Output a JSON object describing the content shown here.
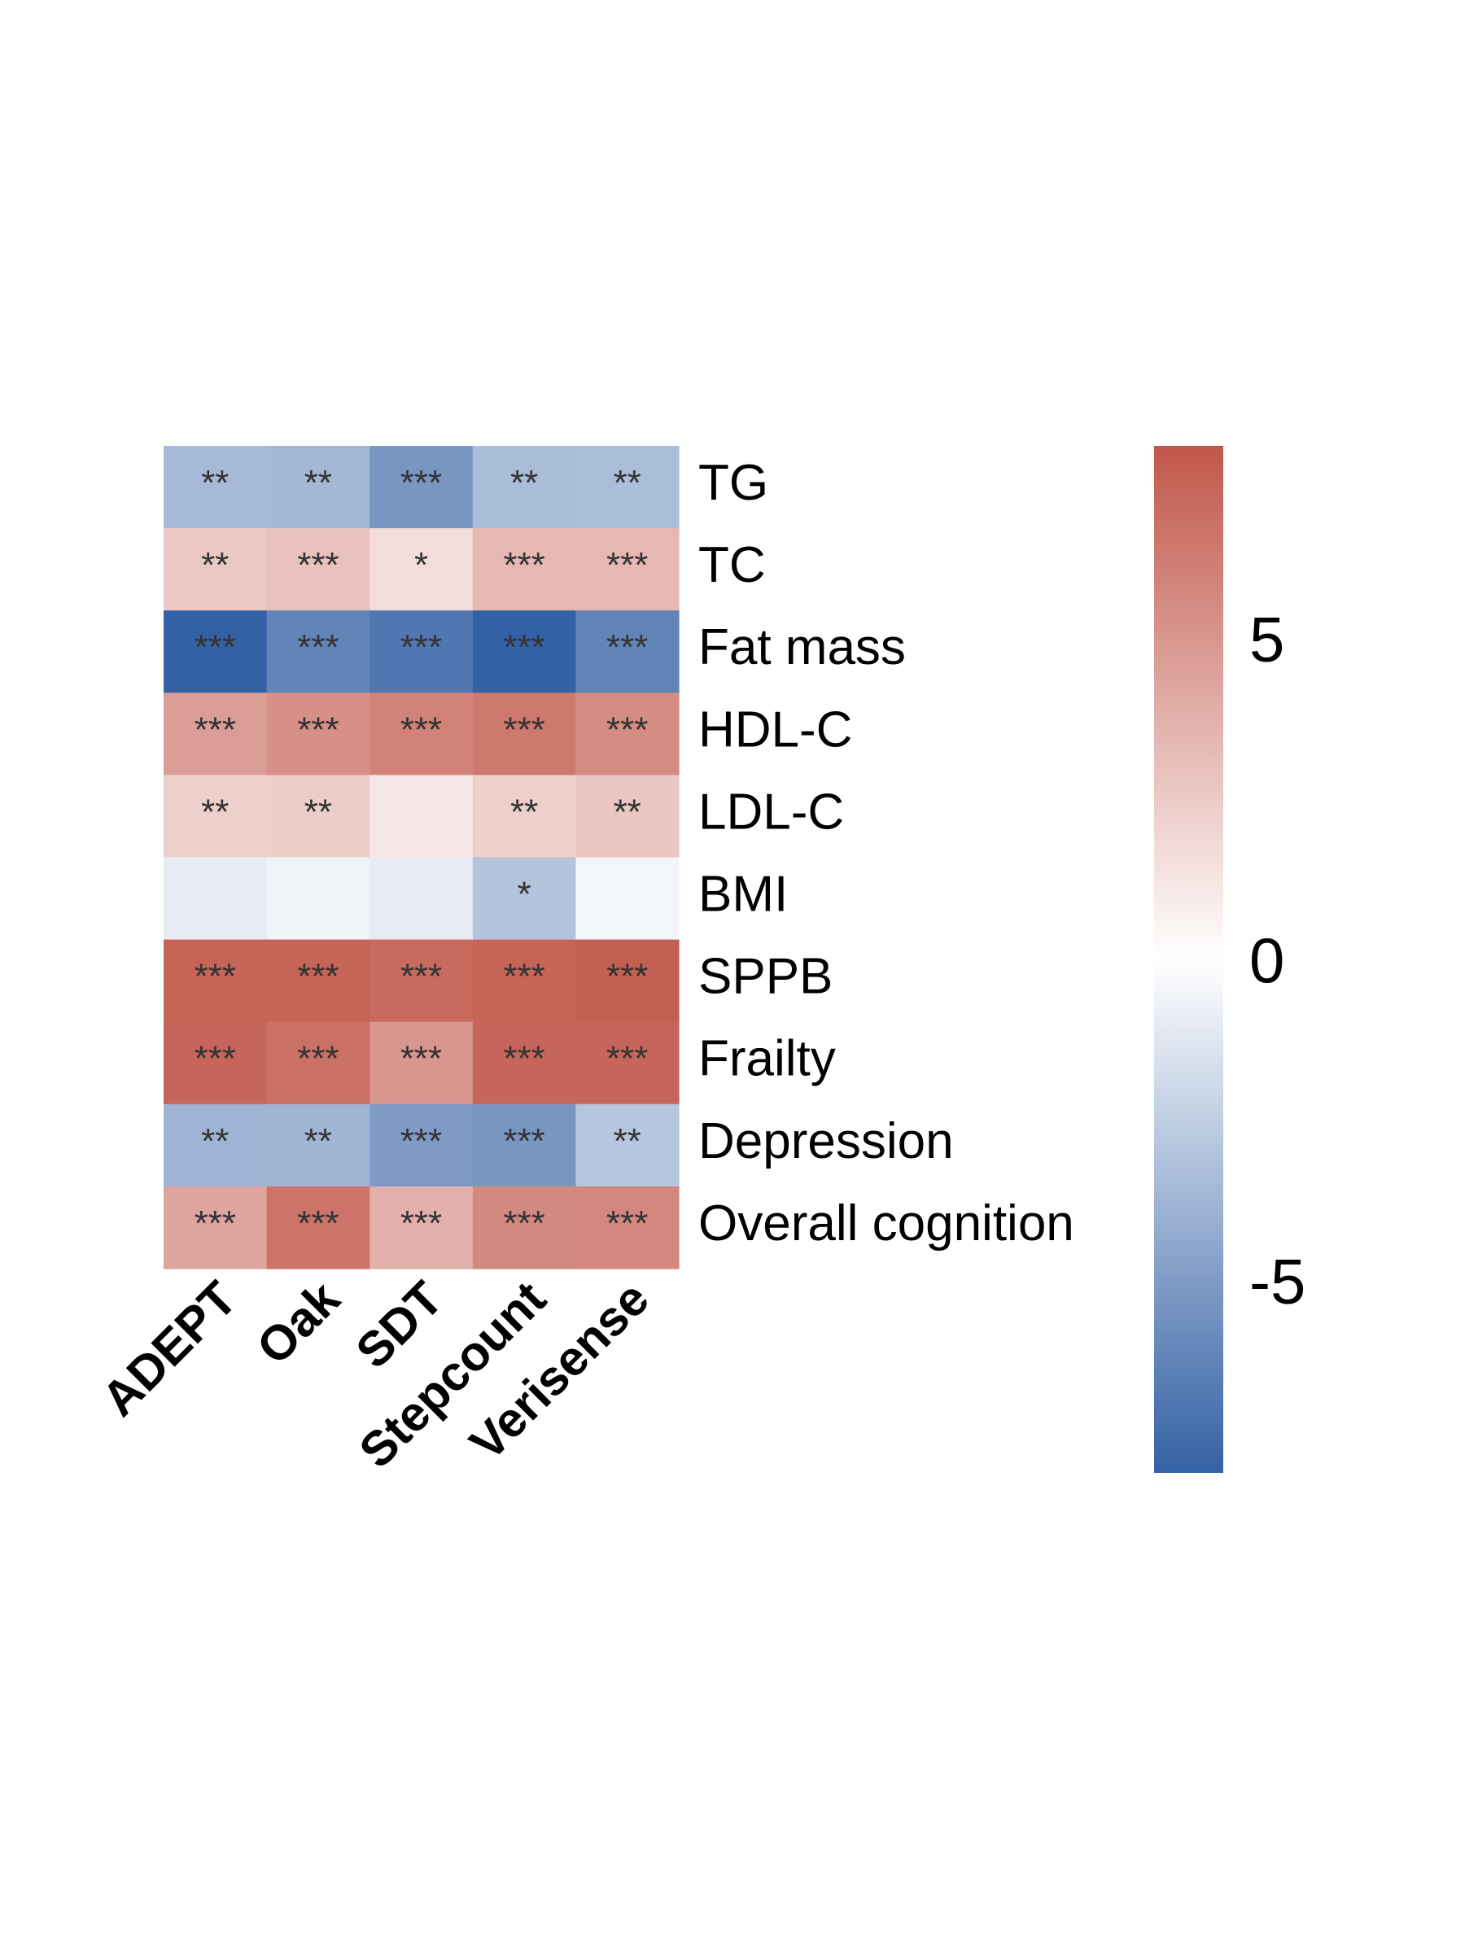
{
  "chart_data": {
    "type": "heatmap",
    "columns": [
      "ADEPT",
      "Oak",
      "SDT",
      "Stepcount",
      "Verisense"
    ],
    "rows": [
      "TG",
      "TC",
      "Fat mass",
      "HDL-C",
      "LDL-C",
      "BMI",
      "SPPB",
      "Frailty",
      "Depression",
      "Overall cognition"
    ],
    "values": [
      [
        -3.5,
        -3.6,
        -5.3,
        -3.4,
        -3.3
      ],
      [
        2.6,
        2.9,
        1.6,
        3.4,
        3.4
      ],
      [
        -8.0,
        -6.2,
        -6.9,
        -8.4,
        -6.2
      ],
      [
        4.6,
        5.3,
        5.9,
        6.4,
        5.5
      ],
      [
        2.3,
        2.4,
        1.1,
        2.3,
        2.7
      ],
      [
        -1.0,
        -0.6,
        -1.0,
        -3.0,
        -0.5
      ],
      [
        7.4,
        7.4,
        7.1,
        7.4,
        7.6
      ],
      [
        7.3,
        6.8,
        5.0,
        7.3,
        7.3
      ],
      [
        -3.8,
        -3.7,
        -5.1,
        -5.3,
        -2.9
      ],
      [
        4.3,
        6.6,
        3.7,
        5.6,
        5.7
      ]
    ],
    "annotations": [
      [
        "**",
        "**",
        "***",
        "**",
        "**"
      ],
      [
        "**",
        "***",
        "*",
        "***",
        "***"
      ],
      [
        "***",
        "***",
        "***",
        "***",
        "***"
      ],
      [
        "***",
        "***",
        "***",
        "***",
        "***"
      ],
      [
        "**",
        "**",
        "",
        "**",
        "**"
      ],
      [
        "",
        "",
        "",
        "*",
        ""
      ],
      [
        "***",
        "***",
        "***",
        "***",
        "***"
      ],
      [
        "***",
        "***",
        "***",
        "***",
        "***"
      ],
      [
        "**",
        "**",
        "***",
        "***",
        "**"
      ],
      [
        "***",
        "***",
        "***",
        "***",
        "***"
      ]
    ],
    "colorbar": {
      "range": [
        -8,
        8
      ],
      "ticks": [
        5,
        0,
        -5
      ],
      "tick_labels": [
        "5",
        "0",
        "-5"
      ],
      "low_color": "#3461a4",
      "mid_color": "#ffffff",
      "high_color": "#c1574a"
    }
  }
}
